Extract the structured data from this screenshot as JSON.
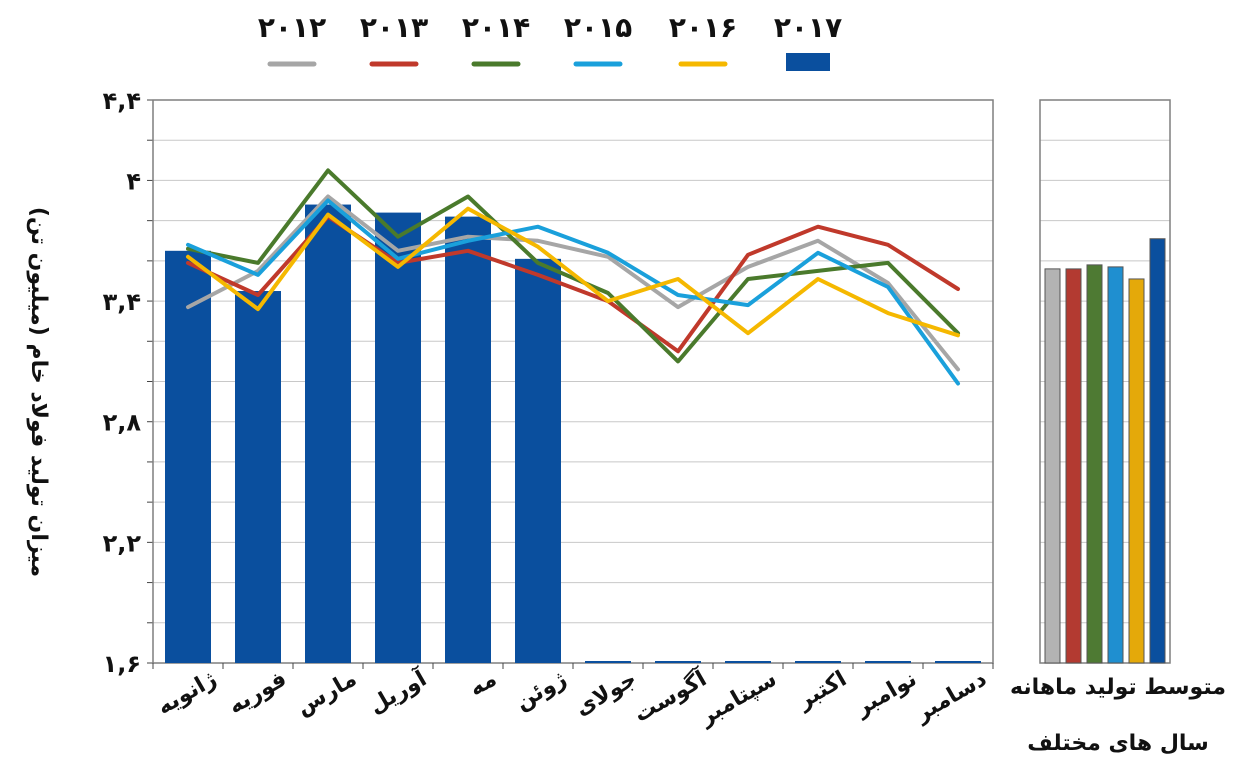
{
  "chart_data": [
    {
      "type": "bar+line",
      "ylabel": "میزان تولید فولاد خام (میلیون تن)",
      "ylim": [
        1.6,
        4.4
      ],
      "yticks": [
        1.6,
        2.2,
        2.8,
        3.4,
        4,
        4.4
      ],
      "ytick_labels": [
        "۱,۶",
        "۲,۲",
        "۲,۸",
        "۳,۴",
        "۴",
        "۴,۴"
      ],
      "grid": true,
      "legend_position": "top",
      "categories": [
        "ژانویه",
        "فوریه",
        "مارس",
        "آوریل",
        "مه",
        "ژوئن",
        "جولای",
        "آگوست",
        "سپتامبر",
        "اکتبر",
        "نوامبر",
        "دسامبر"
      ],
      "bar_series": {
        "name": "۲۰۱۷",
        "color": "#0a4f9e",
        "values": [
          3.65,
          3.45,
          3.88,
          3.84,
          3.82,
          3.61,
          0,
          0,
          0,
          0,
          0,
          0
        ]
      },
      "series": [
        {
          "name": "۲۰۱۲",
          "color": "#a6a6a6",
          "values": [
            3.37,
            3.55,
            3.92,
            3.65,
            3.72,
            3.7,
            3.62,
            3.37,
            3.57,
            3.7,
            3.49,
            3.06
          ]
        },
        {
          "name": "۲۰۱۳",
          "color": "#c0392b",
          "values": [
            3.59,
            3.43,
            3.82,
            3.59,
            3.65,
            3.53,
            3.4,
            3.15,
            3.63,
            3.77,
            3.68,
            3.46
          ]
        },
        {
          "name": "۲۰۱۴",
          "color": "#4a7a2c",
          "values": [
            3.66,
            3.59,
            4.05,
            3.72,
            3.92,
            3.59,
            3.44,
            3.1,
            3.51,
            3.55,
            3.59,
            3.24
          ]
        },
        {
          "name": "۲۰۱۵",
          "color": "#1aa0db",
          "values": [
            3.68,
            3.53,
            3.9,
            3.61,
            3.7,
            3.77,
            3.64,
            3.43,
            3.38,
            3.64,
            3.47,
            2.99
          ]
        },
        {
          "name": "۲۰۱۶",
          "color": "#f5b800",
          "values": [
            3.62,
            3.36,
            3.83,
            3.57,
            3.86,
            3.67,
            3.4,
            3.51,
            3.24,
            3.51,
            3.34,
            3.23
          ]
        }
      ]
    },
    {
      "type": "bar",
      "title": "متوسط تولید ماهانه",
      "xlabel": "سال های مختلف",
      "ylim": [
        1.6,
        4.4
      ],
      "categories": [
        "۲۰۱۲",
        "۲۰۱۳",
        "۲۰۱۴",
        "۲۰۱۵",
        "۲۰۱۶",
        "۲۰۱۷"
      ],
      "colors": [
        "#b3b3b3",
        "#b33a31",
        "#4e7a33",
        "#1f8fd0",
        "#e4a90a",
        "#0a4f9e"
      ],
      "values": [
        3.56,
        3.56,
        3.58,
        3.57,
        3.51,
        3.71
      ]
    }
  ]
}
